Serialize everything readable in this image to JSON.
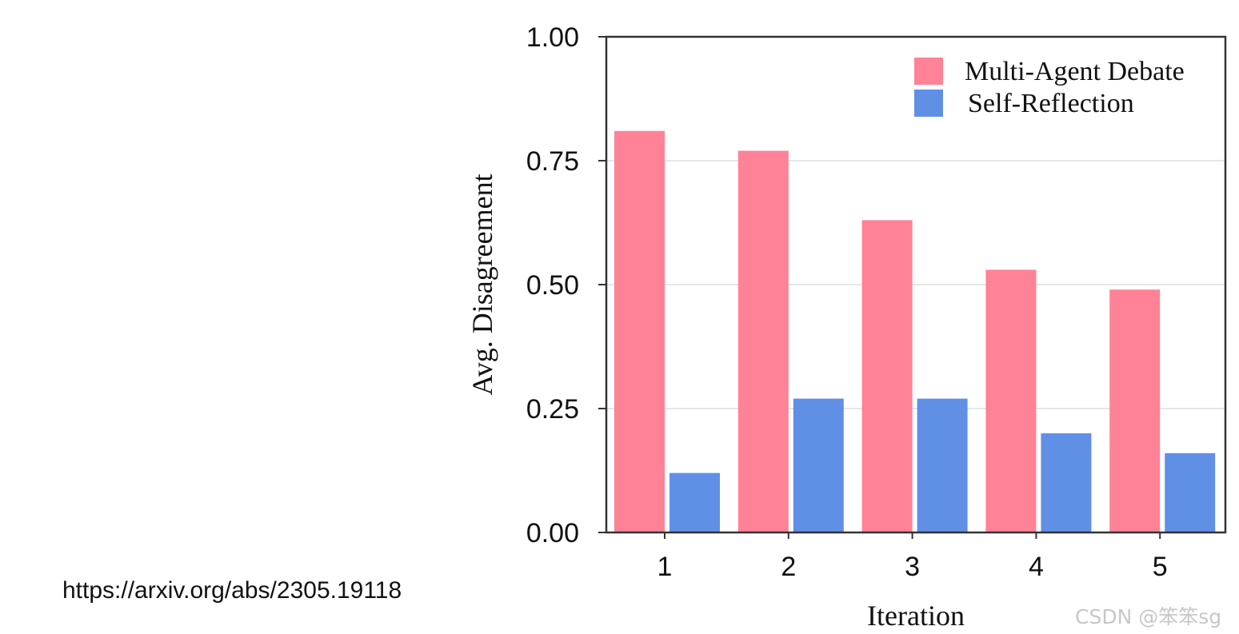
{
  "chart_data": {
    "type": "bar",
    "categories": [
      "1",
      "2",
      "3",
      "4",
      "5"
    ],
    "series": [
      {
        "name": "Multi-Agent Debate",
        "color": "#ff8296",
        "values": [
          0.81,
          0.77,
          0.63,
          0.53,
          0.49
        ]
      },
      {
        "name": "Self-Reflection",
        "color": "#6090e6",
        "values": [
          0.12,
          0.27,
          0.27,
          0.2,
          0.16
        ]
      }
    ],
    "title": "",
    "xlabel": "Iteration",
    "ylabel": "Avg. Disagreement",
    "ylim": [
      0,
      1
    ],
    "yticks": [
      "0.00",
      "0.25",
      "0.50",
      "0.75",
      "1.00"
    ],
    "grid": true,
    "legend_position": "top-right"
  },
  "source_url": "https://arxiv.org/abs/2305.19118",
  "watermark": "CSDN @笨笨sg"
}
